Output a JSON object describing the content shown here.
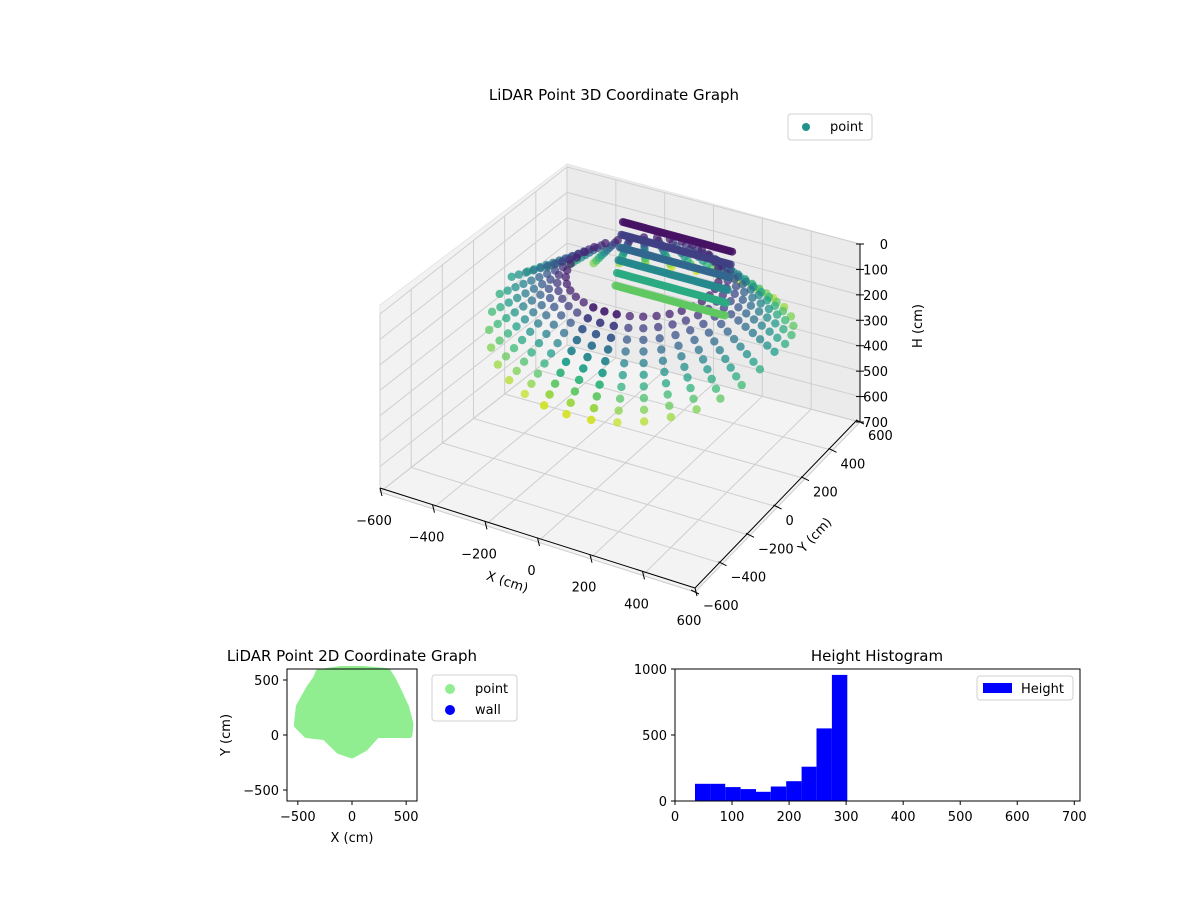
{
  "figure": {
    "title_3d": "LiDAR Point 3D Coordinate Graph",
    "title_2d": "LiDAR Point 2D Coordinate Graph",
    "title_hist": "Height Histogram"
  },
  "chart_data": [
    {
      "type": "scatter",
      "dimensions": 3,
      "title": "LiDAR Point 3D Coordinate Graph",
      "xlabel": "X (cm)",
      "ylabel": "Y (cm)",
      "zlabel": "H (cm)",
      "xlim": [
        -600,
        600
      ],
      "ylim": [
        -600,
        600
      ],
      "zlim": [
        0,
        700
      ],
      "z_inverted": true,
      "x_ticks": [
        "−600",
        "−400",
        "−200",
        "0",
        "200",
        "400",
        "600"
      ],
      "y_ticks": [
        "−600",
        "−400",
        "−200",
        "0",
        "200",
        "400",
        "600"
      ],
      "z_ticks": [
        "0",
        "100",
        "200",
        "300",
        "400",
        "500",
        "600",
        "700"
      ],
      "colormap": "viridis",
      "grid": true,
      "legend": {
        "position": "upper-right",
        "entries": [
          {
            "label": "point",
            "color": "#21918c"
          }
        ]
      },
      "surface": {
        "azimuth_samples_deg": [
          -100,
          -90,
          -80,
          -70,
          -60,
          -50,
          -40,
          -30,
          -20,
          -10,
          0,
          10,
          20,
          30,
          40,
          50,
          60,
          70,
          80,
          90,
          100,
          110,
          120,
          130,
          140,
          150,
          160,
          170,
          180,
          190,
          200,
          210,
          220,
          230,
          240,
          250,
          260,
          270,
          280
        ],
        "outer_radius_cm": 550,
        "height_range_cm": [
          30,
          300
        ]
      }
    },
    {
      "type": "scatter",
      "title": "LiDAR Point 2D Coordinate Graph",
      "xlabel": "X (cm)",
      "ylabel": "Y (cm)",
      "xlim": [
        -600,
        600
      ],
      "ylim": [
        -600,
        600
      ],
      "x_ticks": [
        "−500",
        "0",
        "500"
      ],
      "y_ticks": [
        "−500",
        "0",
        "500"
      ],
      "series": [
        {
          "name": "point",
          "color": "#90ee90",
          "outline": [
            [
              -420,
              0
            ],
            [
              -510,
              90
            ],
            [
              -490,
              260
            ],
            [
              -400,
              420
            ],
            [
              -330,
              520
            ],
            [
              -310,
              570
            ],
            [
              -100,
              600
            ],
            [
              100,
              600
            ],
            [
              330,
              580
            ],
            [
              380,
              500
            ],
            [
              430,
              400
            ],
            [
              500,
              250
            ],
            [
              540,
              100
            ],
            [
              530,
              0
            ],
            [
              230,
              0
            ],
            [
              120,
              -120
            ],
            [
              0,
              -185
            ],
            [
              -120,
              -145
            ],
            [
              -250,
              -20
            ],
            [
              -420,
              0
            ]
          ]
        },
        {
          "name": "wall",
          "color": "#0000ff"
        }
      ],
      "legend": {
        "position": "outside-right"
      }
    },
    {
      "type": "bar",
      "title": "Height Histogram",
      "xlim": [
        0,
        710
      ],
      "ylim": [
        0,
        1000
      ],
      "x_ticks": [
        "0",
        "100",
        "200",
        "300",
        "400",
        "500",
        "600",
        "700"
      ],
      "y_ticks": [
        "0",
        "500",
        "1000"
      ],
      "bins": [
        {
          "start": 35,
          "end": 62,
          "count": 130
        },
        {
          "start": 62,
          "end": 88,
          "count": 130
        },
        {
          "start": 88,
          "end": 115,
          "count": 105
        },
        {
          "start": 115,
          "end": 142,
          "count": 90
        },
        {
          "start": 142,
          "end": 168,
          "count": 70
        },
        {
          "start": 168,
          "end": 195,
          "count": 110
        },
        {
          "start": 195,
          "end": 222,
          "count": 150
        },
        {
          "start": 222,
          "end": 248,
          "count": 260
        },
        {
          "start": 248,
          "end": 275,
          "count": 550
        },
        {
          "start": 275,
          "end": 302,
          "count": 955
        }
      ],
      "color": "#0000ff",
      "legend": {
        "position": "top-right",
        "entries": [
          {
            "label": "Height",
            "color": "#0000ff"
          }
        ]
      }
    }
  ]
}
